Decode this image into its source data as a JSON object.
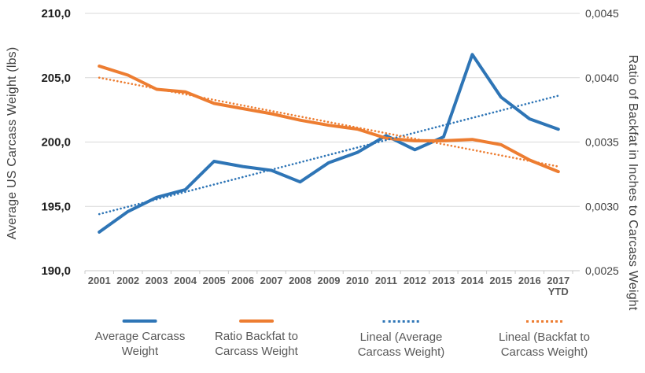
{
  "chart_data": {
    "type": "line",
    "categories": [
      {
        "label": "2001"
      },
      {
        "label": "2002"
      },
      {
        "label": "2003"
      },
      {
        "label": "2004"
      },
      {
        "label": "2005"
      },
      {
        "label": "2006"
      },
      {
        "label": "2007"
      },
      {
        "label": "2008"
      },
      {
        "label": "2009"
      },
      {
        "label": "2010"
      },
      {
        "label": "2011"
      },
      {
        "label": "2012"
      },
      {
        "label": "2013"
      },
      {
        "label": "2014"
      },
      {
        "label": "2015"
      },
      {
        "label": "2016"
      },
      {
        "label": "2017",
        "sub": "YTD"
      }
    ],
    "left_axis": {
      "title": "Average US Carcass Weight (lbs)",
      "min": 190,
      "max": 210,
      "tick_values": [
        210,
        205,
        200,
        195,
        190
      ],
      "tick_labels": [
        "210,0",
        "205,0",
        "200,0",
        "195,0",
        "190,0"
      ]
    },
    "right_axis": {
      "title": "Ratio of Backfat in Inches to Carcass Weight",
      "min": 0.0025,
      "max": 0.0045,
      "tick_values": [
        0.0045,
        0.004,
        0.0035,
        0.003,
        0.0025
      ],
      "tick_labels": [
        "0,0045",
        "0,0040",
        "0,0035",
        "0,0030",
        "0,0025"
      ]
    },
    "grid": true,
    "legend_position": "bottom",
    "series": [
      {
        "name": "Average Carcass Weight",
        "axis": "left",
        "line": "solid",
        "color": "#2E75B6",
        "values": [
          193.0,
          194.6,
          195.7,
          196.3,
          198.5,
          198.1,
          197.8,
          196.9,
          198.4,
          199.2,
          200.5,
          199.4,
          200.4,
          206.8,
          203.5,
          201.8,
          201.0
        ]
      },
      {
        "name": "Ratio Backfat to Carcass Weight",
        "axis": "right",
        "line": "solid",
        "color": "#ED7D31",
        "values": [
          0.00409,
          0.00402,
          0.00391,
          0.00389,
          0.0038,
          0.00376,
          0.00372,
          0.00367,
          0.00363,
          0.0036,
          0.00353,
          0.00351,
          0.00351,
          0.00352,
          0.00348,
          0.00336,
          0.00327
        ]
      },
      {
        "name": "Lineal (Average Carcass Weight)",
        "axis": "left",
        "line": "dotted",
        "color": "#2E75B6",
        "trend": {
          "start": 194.4,
          "end": 203.6
        }
      },
      {
        "name": "Lineal (Backfat to Carcass Weight)",
        "axis": "right",
        "line": "dotted",
        "color": "#ED7D31",
        "trend": {
          "start": 0.004,
          "end": 0.00331
        }
      }
    ]
  },
  "legend": {
    "items": [
      {
        "line1": "Average Carcass",
        "line2": "Weight",
        "style": "solid",
        "color": "#2E75B6"
      },
      {
        "line1": "Ratio Backfat to",
        "line2": "Carcass Weight",
        "style": "solid",
        "color": "#ED7D31"
      },
      {
        "line1": "Lineal (Average",
        "line2": "Carcass Weight)",
        "style": "dotted",
        "color": "#2E75B6"
      },
      {
        "line1": "Lineal (Backfat to",
        "line2": "Carcass Weight)",
        "style": "dotted",
        "color": "#ED7D31"
      }
    ]
  },
  "colors": {
    "blue": "#2E75B6",
    "orange": "#ED7D31",
    "gridline": "#D9D9D9",
    "axis_line": "#C8C8C8",
    "left_tick_text": "#1F1F1F",
    "right_tick_text": "#404040",
    "year_text": "#595959",
    "axis_title_text": "#404040",
    "legend_text": "#595959"
  }
}
